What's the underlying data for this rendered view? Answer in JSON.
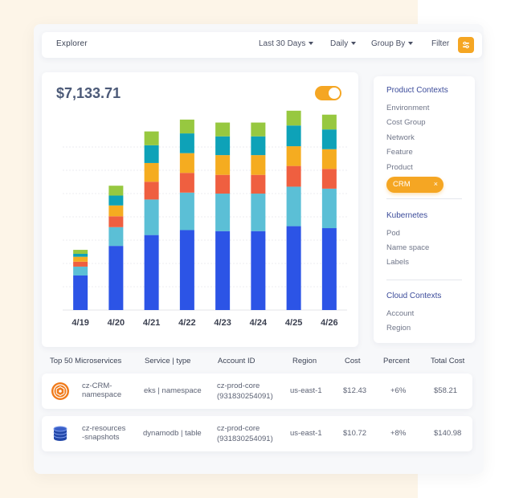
{
  "header": {
    "title": "Explorer",
    "range_label": "Last 30 Days",
    "granularity_label": "Daily",
    "group_by_label": "Group By",
    "filter_label": "Filter"
  },
  "summary": {
    "total_cost": "$7,133.71",
    "toggle_on": true
  },
  "chart_data": {
    "type": "bar",
    "stacked": true,
    "categories": [
      "4/19",
      "4/20",
      "4/21",
      "4/22",
      "4/23",
      "4/24",
      "4/25",
      "4/26"
    ],
    "series": [
      {
        "color": "#2c54e6",
        "values": [
          35,
          65,
          76,
          81,
          80,
          80,
          85,
          83
        ]
      },
      {
        "color": "#5bbfd6",
        "values": [
          9,
          19,
          36,
          38,
          38,
          38,
          40,
          40
        ]
      },
      {
        "color": "#ef5f40",
        "values": [
          5,
          11,
          18,
          20,
          19,
          19,
          21,
          20
        ]
      },
      {
        "color": "#f5ac20",
        "values": [
          5,
          11,
          19,
          20,
          20,
          20,
          20,
          20
        ]
      },
      {
        "color": "#0ea2b8",
        "values": [
          3,
          10,
          18,
          20,
          19,
          19,
          21,
          20
        ]
      },
      {
        "color": "#97c840",
        "values": [
          4,
          10,
          14,
          14,
          14,
          14,
          15,
          15
        ]
      }
    ],
    "ylim": [
      0,
      210
    ],
    "grid": true,
    "legend": "none"
  },
  "sidebar": {
    "product_contexts": {
      "title": "Product Contexts",
      "items": [
        "Environment",
        "Cost Group",
        "Network",
        "Feature",
        "Product"
      ],
      "chip_label": "CRM",
      "chip_close": "×"
    },
    "kubernetes": {
      "title": "Kubernetes",
      "items": [
        "Pod",
        "Name space",
        "Labels"
      ]
    },
    "cloud_contexts": {
      "title": "Cloud Contexts",
      "items": [
        "Account",
        "Region"
      ]
    }
  },
  "table": {
    "headers": [
      "Top 50 Microservices",
      "Service | type",
      "Account ID",
      "Region",
      "Cost",
      "Percent",
      "Total Cost"
    ],
    "rows": [
      {
        "icon": "eks-icon",
        "name_line1": "cz-CRM-",
        "name_line2": "namespace",
        "service": "eks | namespace",
        "account_line1": "cz-prod-core",
        "account_line2": "(931830254091)",
        "region": "us-east-1",
        "cost": "$12.43",
        "percent": "+6%",
        "total": "$58.21"
      },
      {
        "icon": "dynamodb-icon",
        "name_line1": "cz-resources",
        "name_line2": "-snapshots",
        "service": "dynamodb | table",
        "account_line1": "cz-prod-core",
        "account_line2": "(931830254091)",
        "region": "us-east-1",
        "cost": "$10.72",
        "percent": "+8%",
        "total": "$140.98"
      }
    ]
  },
  "colors": {
    "accent": "#f5a623",
    "heading": "#3b4b9a"
  }
}
